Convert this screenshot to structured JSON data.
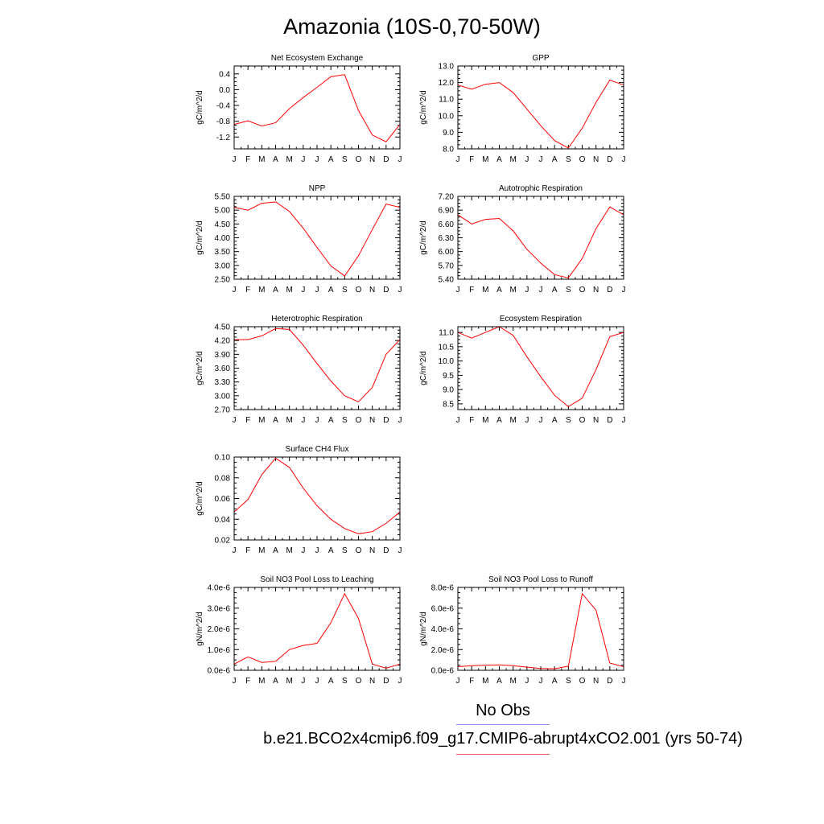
{
  "title": "Amazonia (10S-0,70-50W)",
  "months": [
    "J",
    "F",
    "M",
    "A",
    "M",
    "J",
    "J",
    "A",
    "S",
    "O",
    "N",
    "D",
    "J"
  ],
  "series_color": "#ff0000",
  "legend": {
    "obs_label": "No Obs",
    "obs_color": "#8888ee",
    "case_label": "b.e21.BCO2x4cmip6.f09_g17.CMIP6-abrupt4xCO2.001 (yrs 50-74)",
    "case_color": "#ee6666"
  },
  "chart_data": [
    {
      "type": "line",
      "title": "Net Ecosystem Exchange",
      "ylabel": "gC/m^2/d",
      "ylim": [
        -1.5,
        0.6
      ],
      "yticks": [
        -1.2,
        -0.8,
        -0.4,
        0.0,
        0.4
      ],
      "yticklabels": [
        "-1.2",
        "-0.8",
        "-0.4",
        "0.0",
        "0.4"
      ],
      "values": [
        -0.88,
        -0.79,
        -0.92,
        -0.84,
        -0.48,
        -0.2,
        0.06,
        0.33,
        0.38,
        -0.53,
        -1.15,
        -1.32,
        -0.88
      ]
    },
    {
      "type": "line",
      "title": "GPP",
      "ylabel": "gC/m^2/d",
      "ylim": [
        8.0,
        13.0
      ],
      "yticks": [
        8.0,
        9.0,
        10.0,
        11.0,
        12.0,
        13.0
      ],
      "yticklabels": [
        "8.0",
        "9.0",
        "10.0",
        "11.0",
        "12.0",
        "13.0"
      ],
      "values": [
        11.85,
        11.6,
        11.9,
        12.0,
        11.4,
        10.4,
        9.4,
        8.5,
        8.05,
        9.25,
        10.8,
        12.15,
        11.85
      ]
    },
    {
      "type": "line",
      "title": "NPP",
      "ylabel": "gC/m^2/d",
      "ylim": [
        2.5,
        5.5
      ],
      "yticks": [
        2.5,
        3.0,
        3.5,
        4.0,
        4.5,
        5.0,
        5.5
      ],
      "yticklabels": [
        "2.50",
        "3.00",
        "3.50",
        "4.00",
        "4.50",
        "5.00",
        "5.50"
      ],
      "values": [
        5.1,
        5.0,
        5.25,
        5.3,
        4.95,
        4.35,
        3.65,
        2.98,
        2.62,
        3.35,
        4.3,
        5.22,
        5.1
      ]
    },
    {
      "type": "line",
      "title": "Autotrophic Respiration",
      "ylabel": "gC/m^2/d",
      "ylim": [
        5.4,
        7.2
      ],
      "yticks": [
        5.4,
        5.7,
        6.0,
        6.3,
        6.6,
        6.9,
        7.2
      ],
      "yticklabels": [
        "5.40",
        "5.70",
        "6.00",
        "6.30",
        "6.60",
        "6.90",
        "7.20"
      ],
      "values": [
        6.8,
        6.6,
        6.7,
        6.72,
        6.45,
        6.05,
        5.75,
        5.5,
        5.43,
        5.85,
        6.5,
        6.97,
        6.8
      ]
    },
    {
      "type": "line",
      "title": "Heterotrophic Respiration",
      "ylabel": "gC/m^2/d",
      "ylim": [
        2.7,
        4.5
      ],
      "yticks": [
        2.7,
        3.0,
        3.3,
        3.6,
        3.9,
        4.2,
        4.5
      ],
      "yticklabels": [
        "2.70",
        "3.00",
        "3.30",
        "3.60",
        "3.90",
        "4.20",
        "4.50"
      ],
      "values": [
        4.22,
        4.22,
        4.3,
        4.46,
        4.44,
        4.1,
        3.7,
        3.32,
        3.0,
        2.87,
        3.18,
        3.9,
        4.22
      ]
    },
    {
      "type": "line",
      "title": "Ecosystem Respiration",
      "ylabel": "gC/m^2/d",
      "ylim": [
        8.3,
        11.2
      ],
      "yticks": [
        8.5,
        9.0,
        9.5,
        10.0,
        10.5,
        11.0
      ],
      "yticklabels": [
        "8.5",
        "9.0",
        "9.5",
        "10.0",
        "10.5",
        "11.0"
      ],
      "values": [
        11.0,
        10.8,
        11.0,
        11.2,
        10.9,
        10.15,
        9.45,
        8.8,
        8.4,
        8.7,
        9.7,
        10.85,
        11.0
      ]
    },
    {
      "type": "line",
      "title": "Surface CH4 Flux",
      "ylabel": "gC/m^2/d",
      "ylim": [
        0.02,
        0.1
      ],
      "yticks": [
        0.02,
        0.04,
        0.06,
        0.08,
        0.1
      ],
      "yticklabels": [
        "0.02",
        "0.04",
        "0.06",
        "0.08",
        "0.10"
      ],
      "values": [
        0.047,
        0.059,
        0.083,
        0.099,
        0.09,
        0.07,
        0.053,
        0.04,
        0.031,
        0.026,
        0.028,
        0.036,
        0.047
      ]
    },
    null,
    {
      "type": "line",
      "title": "Soil NO3 Pool Loss to Leaching",
      "ylabel": "gN/m^2/d",
      "ylim": [
        0,
        4e-06
      ],
      "yticks": [
        0,
        1e-06,
        2e-06,
        3e-06,
        4e-06
      ],
      "yticklabels": [
        "0.0e-6",
        "1.0e-6",
        "2.0e-6",
        "3.0e-6",
        "4.0e-6"
      ],
      "values": [
        3e-07,
        6.5e-07,
        3.8e-07,
        4.3e-07,
        1e-06,
        1.2e-06,
        1.3e-06,
        2.3e-06,
        3.7e-06,
        2.5e-06,
        3e-07,
        1e-07,
        3e-07
      ]
    },
    {
      "type": "line",
      "title": "Soil NO3 Pool Loss to Runoff",
      "ylabel": "gN/m^2/d",
      "ylim": [
        0,
        8e-06
      ],
      "yticks": [
        0,
        2e-06,
        4e-06,
        6e-06,
        8e-06
      ],
      "yticklabels": [
        "0.0e-6",
        "2.0e-6",
        "4.0e-6",
        "6.0e-6",
        "8.0e-6"
      ],
      "values": [
        3.5e-07,
        4.5e-07,
        5e-07,
        5.2e-07,
        4.5e-07,
        3e-07,
        1.8e-07,
        1.5e-07,
        4e-07,
        7.4e-06,
        5.8e-06,
        7e-07,
        3.5e-07
      ]
    }
  ]
}
